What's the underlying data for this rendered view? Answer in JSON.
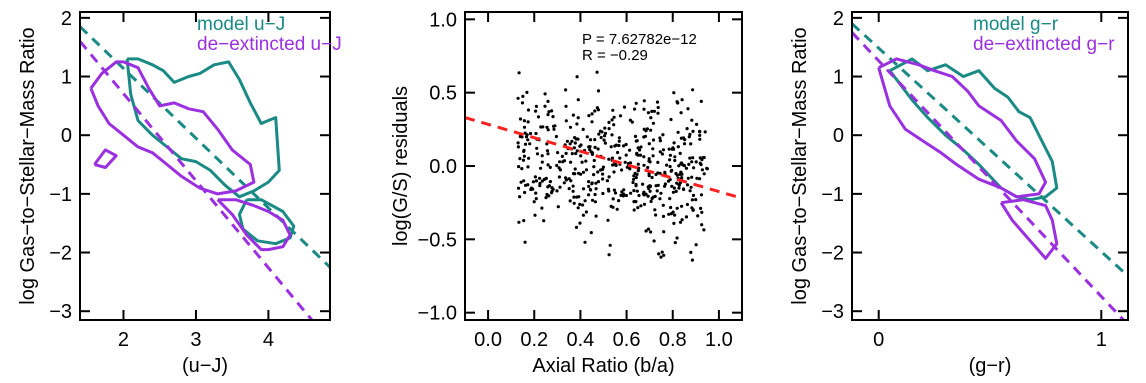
{
  "colors": {
    "model": "#1a8a85",
    "de_extincted": "#9b30e0",
    "fit": "#ff2020",
    "points": "#000000",
    "axes": "#000000"
  },
  "chart_data": [
    {
      "type": "line",
      "xlabel": "(u−J)",
      "ylabel": "log Gas−to−Stellar−Mass Ratio",
      "xlim": [
        1.4,
        4.85
      ],
      "ylim": [
        -3.15,
        2.1
      ],
      "xticks": [
        2,
        3,
        4
      ],
      "xtick_labels": [
        "2",
        "3",
        "4"
      ],
      "yticks": [
        -3,
        -2,
        -1,
        0,
        1,
        2
      ],
      "ytick_labels": [
        "−3",
        "−2",
        "−1",
        "0",
        "1",
        "2"
      ],
      "legend": [
        "model u−J",
        "de−extincted u−J"
      ],
      "legend_placement": "top-right",
      "series": [
        {
          "name": "model u−J",
          "color_key": "model",
          "fit_line": {
            "x": [
              1.4,
              4.85
            ],
            "y": [
              1.85,
              -2.25
            ]
          },
          "contours": [
            {
              "x": [
                2.05,
                2.2,
                2.4,
                2.55,
                2.7,
                2.9,
                3.05,
                3.25,
                3.45,
                3.6,
                3.75,
                3.9,
                4.0,
                4.1,
                4.15,
                4.0,
                3.8,
                3.6,
                3.4,
                3.2,
                3.0,
                2.8,
                2.6,
                2.4,
                2.2,
                2.1,
                2.05
              ],
              "y": [
                1.3,
                1.3,
                1.2,
                1.1,
                0.9,
                1.0,
                1.05,
                1.2,
                1.25,
                0.95,
                0.55,
                0.2,
                0.25,
                0.3,
                -0.6,
                -0.8,
                -0.95,
                -1.05,
                -0.85,
                -0.6,
                -0.45,
                -0.4,
                -0.2,
                0.0,
                0.25,
                0.7,
                1.3
              ]
            },
            {
              "x": [
                3.7,
                3.9,
                4.2,
                4.35,
                4.3,
                4.1,
                3.85,
                3.65,
                3.6,
                3.7
              ],
              "y": [
                -1.1,
                -1.1,
                -1.3,
                -1.55,
                -1.75,
                -1.85,
                -1.8,
                -1.6,
                -1.35,
                -1.1
              ]
            }
          ]
        },
        {
          "name": "de−extincted u−J",
          "color_key": "de_extincted",
          "fit_line": {
            "x": [
              1.4,
              4.6
            ],
            "y": [
              1.6,
              -3.15
            ]
          },
          "contours": [
            {
              "x": [
                1.55,
                1.7,
                1.9,
                2.0,
                2.2,
                2.35,
                2.5,
                2.7,
                2.9,
                3.1,
                3.3,
                3.5,
                3.75,
                3.8,
                3.55,
                3.3,
                3.05,
                2.8,
                2.6,
                2.4,
                2.2,
                2.0,
                1.8,
                1.65,
                1.55
              ],
              "y": [
                0.8,
                1.05,
                1.25,
                1.25,
                1.15,
                0.8,
                0.5,
                0.55,
                0.45,
                0.4,
                0.1,
                -0.25,
                -0.5,
                -0.8,
                -0.95,
                -1.0,
                -0.9,
                -0.7,
                -0.5,
                -0.3,
                -0.2,
                0.0,
                0.2,
                0.5,
                0.8
              ]
            },
            {
              "x": [
                3.3,
                3.55,
                3.8,
                4.0,
                4.2,
                4.3,
                4.2,
                4.0,
                3.9,
                3.7,
                3.5,
                3.3
              ],
              "y": [
                -1.1,
                -1.1,
                -1.2,
                -1.3,
                -1.45,
                -1.7,
                -1.9,
                -1.95,
                -1.95,
                -1.7,
                -1.35,
                -1.1
              ]
            },
            {
              "x": [
                1.6,
                1.75,
                1.9,
                1.75,
                1.6
              ],
              "y": [
                -0.5,
                -0.55,
                -0.35,
                -0.25,
                -0.5
              ]
            }
          ]
        }
      ]
    },
    {
      "type": "scatter",
      "xlabel": "Axial Ratio (b/a)",
      "ylabel": "log(G/S) residuals",
      "xlim": [
        -0.1,
        1.1
      ],
      "ylim": [
        -1.05,
        1.05
      ],
      "xticks": [
        0.0,
        0.2,
        0.4,
        0.6,
        0.8,
        1.0
      ],
      "xtick_labels": [
        "0.0",
        "0.2",
        "0.4",
        "0.6",
        "0.8",
        "1.0"
      ],
      "yticks": [
        -1.0,
        -0.5,
        0.0,
        0.5,
        1.0
      ],
      "ytick_labels": [
        "−1.0",
        "−0.5",
        "0.0",
        "0.5",
        "1.0"
      ],
      "annotations": [
        "P = 7.62782e−12",
        "R = −0.29"
      ],
      "fit_line": {
        "x": [
          -0.1,
          1.1
        ],
        "y": [
          0.33,
          -0.22
        ],
        "style": "dashed"
      },
      "scatter_region": {
        "xmin": 0.13,
        "xmax": 0.95,
        "mean_y_at_xmin": 0.1,
        "mean_y_at_xmax": -0.1,
        "spread": 0.35,
        "count": 520
      }
    },
    {
      "type": "line",
      "xlabel": "(g−r)",
      "ylabel": "log Gas−to−Stellar−Mass Ratio",
      "xlim": [
        -0.12,
        1.12
      ],
      "ylim": [
        -3.15,
        2.1
      ],
      "xticks": [
        0,
        1
      ],
      "xtick_labels": [
        "0",
        "1"
      ],
      "yticks": [
        -3,
        -2,
        -1,
        0,
        1,
        2
      ],
      "ytick_labels": [
        "−3",
        "−2",
        "−1",
        "0",
        "1",
        "2"
      ],
      "legend": [
        "model g−r",
        "de−extincted g−r"
      ],
      "legend_placement": "top-right",
      "series": [
        {
          "name": "model g−r",
          "color_key": "model",
          "fit_line": {
            "x": [
              -0.12,
              1.12
            ],
            "y": [
              1.9,
              -2.4
            ]
          },
          "contours": [
            {
              "x": [
                0.05,
                0.15,
                0.22,
                0.3,
                0.38,
                0.45,
                0.52,
                0.58,
                0.63,
                0.68,
                0.74,
                0.78,
                0.8,
                0.75,
                0.68,
                0.62,
                0.55,
                0.45,
                0.38,
                0.3,
                0.22,
                0.15,
                0.1,
                0.05
              ],
              "y": [
                1.1,
                1.3,
                1.1,
                1.2,
                1.0,
                1.1,
                0.8,
                0.65,
                0.4,
                0.3,
                -0.15,
                -0.45,
                -0.9,
                -1.05,
                -1.1,
                -1.05,
                -0.9,
                -0.5,
                -0.25,
                0.0,
                0.3,
                0.6,
                0.85,
                1.1
              ]
            }
          ]
        },
        {
          "name": "de−extincted g−r",
          "color_key": "de_extincted",
          "fit_line": {
            "x": [
              -0.12,
              1.1
            ],
            "y": [
              1.75,
              -3.15
            ]
          },
          "contours": [
            {
              "x": [
                0.0,
                0.08,
                0.18,
                0.25,
                0.33,
                0.4,
                0.45,
                0.55,
                0.62,
                0.7,
                0.75,
                0.72,
                0.62,
                0.55,
                0.45,
                0.35,
                0.28,
                0.2,
                0.12,
                0.05,
                0.0
              ],
              "y": [
                1.15,
                1.3,
                1.2,
                1.1,
                1.0,
                0.75,
                0.5,
                0.25,
                -0.1,
                -0.4,
                -0.8,
                -1.0,
                -1.05,
                -0.9,
                -0.75,
                -0.5,
                -0.3,
                -0.1,
                0.1,
                0.5,
                1.15
              ]
            },
            {
              "x": [
                0.55,
                0.65,
                0.75,
                0.78,
                0.8,
                0.75,
                0.68,
                0.6,
                0.55
              ],
              "y": [
                -1.15,
                -1.1,
                -1.2,
                -1.45,
                -1.85,
                -2.1,
                -1.8,
                -1.45,
                -1.15
              ]
            }
          ]
        }
      ]
    }
  ]
}
